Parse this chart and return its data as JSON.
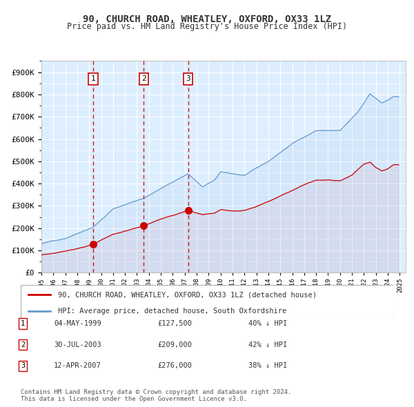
{
  "title": "90, CHURCH ROAD, WHEATLEY, OXFORD, OX33 1LZ",
  "subtitle": "Price paid vs. HM Land Registry's House Price Index (HPI)",
  "legend_red": "90, CHURCH ROAD, WHEATLEY, OXFORD, OX33 1LZ (detached house)",
  "legend_blue": "HPI: Average price, detached house, South Oxfordshire",
  "footnote": "Contains HM Land Registry data © Crown copyright and database right 2024.\nThis data is licensed under the Open Government Licence v3.0.",
  "transactions": [
    {
      "num": 1,
      "date": "04-MAY-1999",
      "price": 127500,
      "pct": "40%",
      "dir": "↓",
      "x_year": 1999.34
    },
    {
      "num": 2,
      "date": "30-JUL-2003",
      "price": 209000,
      "pct": "42%",
      "dir": "↓",
      "x_year": 2003.57
    },
    {
      "num": 3,
      "date": "12-APR-2007",
      "price": 276000,
      "pct": "38%",
      "dir": "↓",
      "x_year": 2007.28
    }
  ],
  "red_color": "#cc0000",
  "blue_color": "#6699cc",
  "background_color": "#ddeeff",
  "grid_color": "#ffffff",
  "vline_color": "#cc0000",
  "box_color": "#cc0000",
  "ylim": [
    0,
    950000
  ],
  "xlim_start": 1995.0,
  "xlim_end": 2025.5
}
